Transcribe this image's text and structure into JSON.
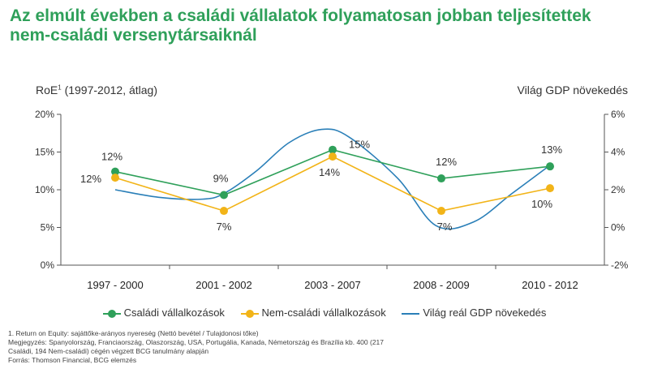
{
  "title": {
    "line1": "Az elmúlt években a családi vállalatok folyamatosan jobban teljesítettek",
    "line2": "nem-családi versenytársaiknál"
  },
  "axis_titles": {
    "left": "RoE",
    "left_sup": "1",
    "left_rest": " (1997-2012, átlag)",
    "right": "Világ GDP növekedés"
  },
  "legend": [
    {
      "label": "Családi vállalkozások",
      "color": "#2fa05a"
    },
    {
      "label": "Nem-családi vállalkozások",
      "color": "#f2b418"
    },
    {
      "label": "Világ reál GDP növekedés",
      "color": "#2a7fb8"
    }
  ],
  "footnotes": [
    "1. Return on Equity: sajáttőke-arányos nyereség (Nettó bevétel / Tulajdonosi tőke)",
    "Megjegyzés: Spanyolország, Franciaország, Olaszország, USA, Portugália, Kanada, Németország és Brazília kb. 400 (217",
    "Családi, 194 Nem-családi) cégén végzett BCG tanulmány alapján",
    "Forrás: Thomson Financial, BCG elemzés"
  ],
  "chart_data": {
    "type": "line",
    "categories": [
      "1997 - 2000",
      "2001 - 2002",
      "2003 - 2007",
      "2008 - 2009",
      "2010 - 2012"
    ],
    "y_left": {
      "min": 0,
      "max": 20,
      "ticks": [
        "0%",
        "5%",
        "10%",
        "15%",
        "20%"
      ]
    },
    "y_right": {
      "min": -2,
      "max": 6,
      "ticks": [
        "-2%",
        "0%",
        "2%",
        "4%",
        "6%"
      ]
    },
    "grid": false,
    "legend_position": "bottom",
    "series": [
      {
        "name": "Családi vállalkozások",
        "axis": "left",
        "color": "#2fa05a",
        "values": [
          12.4,
          9.3,
          15.3,
          11.5,
          13.1
        ],
        "labels": [
          "12%",
          "9%",
          "15%",
          "12%",
          "13%"
        ]
      },
      {
        "name": "Nem-családi vállalkozások",
        "axis": "left",
        "color": "#f2b418",
        "values": [
          11.6,
          7.2,
          14.4,
          7.2,
          10.2
        ],
        "labels": [
          "12%",
          "7%",
          "14%",
          "7%",
          "10%"
        ]
      },
      {
        "name": "Világ reál GDP növekedés",
        "axis": "right",
        "color": "#2a7fb8",
        "smooth": true,
        "x": [
          0,
          0.4,
          0.8,
          1.0,
          1.3,
          1.6,
          1.9,
          2.15,
          2.6,
          2.95,
          3.3,
          3.65,
          4.0
        ],
        "values": [
          2.0,
          1.6,
          1.5,
          1.8,
          3.0,
          4.5,
          5.2,
          4.8,
          2.6,
          0.1,
          0.3,
          1.8,
          3.3
        ]
      }
    ]
  }
}
